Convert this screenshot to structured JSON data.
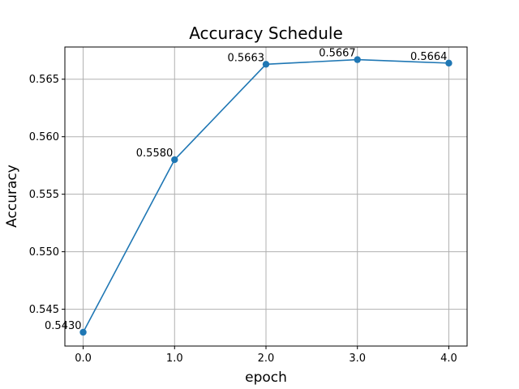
{
  "chart_data": {
    "type": "line",
    "title": "Accuracy Schedule",
    "xlabel": "epoch",
    "ylabel": "Accuracy",
    "x": [
      0,
      1,
      2,
      3,
      4
    ],
    "x_tick_labels": [
      "0.0",
      "1.0",
      "2.0",
      "3.0",
      "4.0"
    ],
    "y_ticks": [
      0.545,
      0.55,
      0.555,
      0.56,
      0.565
    ],
    "y_tick_labels": [
      "0.545",
      "0.550",
      "0.555",
      "0.560",
      "0.565"
    ],
    "xlim": [
      -0.2,
      4.2
    ],
    "ylim": [
      0.5418,
      0.5678
    ],
    "series": [
      {
        "values": [
          0.543,
          0.558,
          0.5663,
          0.5667,
          0.5664
        ],
        "labels": [
          "0.5430",
          "0.5580",
          "0.5663",
          "0.5667",
          "0.5664"
        ],
        "color": "#1f77b4"
      }
    ],
    "grid": true,
    "legend": false
  }
}
